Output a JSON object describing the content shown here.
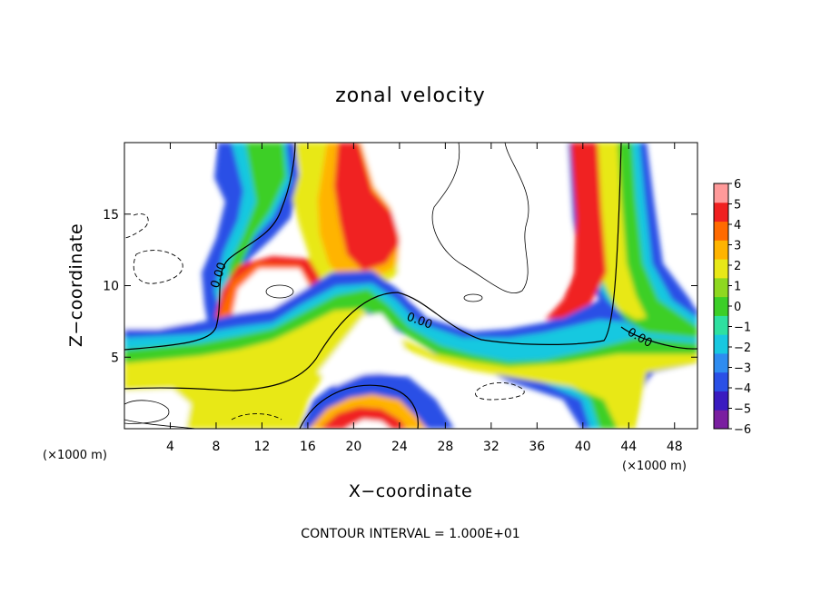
{
  "chart_data": {
    "type": "heatmap",
    "title": "zonal velocity",
    "xlabel": "X−coordinate",
    "ylabel": "Z−coordinate",
    "x_unit_label": "(×1000 m)",
    "x_unit_label_right": "(×1000 m)",
    "footer": "CONTOUR INTERVAL = 1.000E+01",
    "xlim": [
      0,
      50
    ],
    "ylim": [
      0,
      20
    ],
    "x_ticks": [
      4,
      8,
      12,
      16,
      20,
      24,
      28,
      32,
      36,
      40,
      44,
      48
    ],
    "y_ticks": [
      5,
      10,
      15
    ],
    "colorbar": {
      "ticks": [
        "6",
        "5",
        "4",
        "3",
        "2",
        "1",
        "0",
        "−1",
        "−2",
        "−3",
        "−4",
        "−5",
        "−6"
      ],
      "range": [
        -6,
        6
      ],
      "colors": [
        "#7a1fa0",
        "#3a1bc0",
        "#2a50e6",
        "#2e8cf0",
        "#18c8e0",
        "#2ee0a0",
        "#3ccf28",
        "#8ed820",
        "#e8e818",
        "#ffb400",
        "#ff6a00",
        "#f02020",
        "#ff9a9a"
      ]
    },
    "contour_labels": [
      "0.00",
      "0.00",
      "0.00"
    ],
    "fields": {
      "warm_band": "red/orange/yellow band of positive zonal velocity",
      "cold_band": "blue/purple band of negative zonal velocity",
      "zero_contours": "solid black lines at 0.00"
    }
  }
}
